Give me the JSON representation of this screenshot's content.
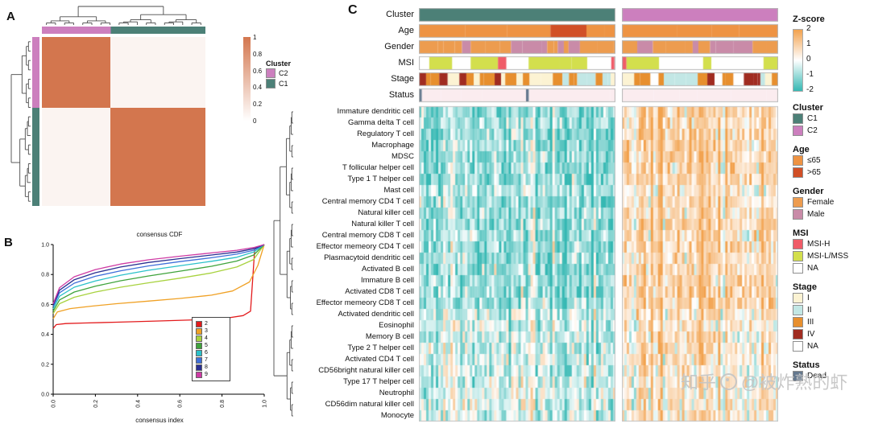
{
  "watermark": {
    "brand": "知乎",
    "handle": "@被炸熟的虾"
  },
  "chart_data": [
    {
      "label": "A",
      "type": "heatmap",
      "subtype": "consensus-matrix",
      "heat": {
        "block_color": "#D3764E",
        "off_color": "#FBF4F1",
        "c2_fraction": 0.42
      },
      "colorbar": {
        "ticks": [
          "1",
          "0.8",
          "0.6",
          "0.4",
          "0.2",
          "0"
        ],
        "high": "#D3764E",
        "low": "#FFFFFF"
      },
      "cluster_legend": {
        "title": "Cluster",
        "items": [
          {
            "label": "C2",
            "color": "#CC7FBE"
          },
          {
            "label": "C1",
            "color": "#4C8077"
          }
        ]
      }
    },
    {
      "label": "B",
      "type": "line",
      "title": "consensus CDF",
      "xlabel": "consensus index",
      "x_ticks": [
        "0.0",
        "0.2",
        "0.4",
        "0.6",
        "0.8",
        "1.0"
      ],
      "y_ticks": [
        "0.0",
        "0.2",
        "0.4",
        "0.6",
        "0.8",
        "1.0"
      ],
      "xlim": [
        0,
        1
      ],
      "ylim": [
        0,
        1
      ],
      "series": [
        {
          "name": "2",
          "color": "#E31A1C",
          "points": [
            [
              0,
              0.44
            ],
            [
              0.015,
              0.465
            ],
            [
              0.06,
              0.472
            ],
            [
              0.15,
              0.476
            ],
            [
              0.3,
              0.481
            ],
            [
              0.5,
              0.489
            ],
            [
              0.7,
              0.498
            ],
            [
              0.82,
              0.508
            ],
            [
              0.9,
              0.525
            ],
            [
              0.935,
              0.555
            ],
            [
              0.955,
              0.97
            ],
            [
              1,
              1
            ]
          ]
        },
        {
          "name": "3",
          "color": "#F0A125",
          "points": [
            [
              0,
              0.505
            ],
            [
              0.02,
              0.55
            ],
            [
              0.08,
              0.572
            ],
            [
              0.18,
              0.588
            ],
            [
              0.3,
              0.605
            ],
            [
              0.45,
              0.622
            ],
            [
              0.6,
              0.64
            ],
            [
              0.75,
              0.662
            ],
            [
              0.85,
              0.69
            ],
            [
              0.93,
              0.75
            ],
            [
              0.97,
              0.86
            ],
            [
              1,
              1
            ]
          ]
        },
        {
          "name": "4",
          "color": "#A8D23F",
          "points": [
            [
              0,
              0.54
            ],
            [
              0.03,
              0.605
            ],
            [
              0.1,
              0.648
            ],
            [
              0.2,
              0.683
            ],
            [
              0.32,
              0.715
            ],
            [
              0.45,
              0.744
            ],
            [
              0.6,
              0.775
            ],
            [
              0.75,
              0.81
            ],
            [
              0.87,
              0.85
            ],
            [
              0.95,
              0.9
            ],
            [
              1,
              1
            ]
          ]
        },
        {
          "name": "5",
          "color": "#3FA33C",
          "points": [
            [
              0,
              0.555
            ],
            [
              0.03,
              0.63
            ],
            [
              0.1,
              0.683
            ],
            [
              0.2,
              0.722
            ],
            [
              0.32,
              0.758
            ],
            [
              0.45,
              0.79
            ],
            [
              0.6,
              0.822
            ],
            [
              0.75,
              0.855
            ],
            [
              0.87,
              0.89
            ],
            [
              0.95,
              0.93
            ],
            [
              1,
              1
            ]
          ]
        },
        {
          "name": "6",
          "color": "#2BC1C9",
          "points": [
            [
              0,
              0.57
            ],
            [
              0.03,
              0.655
            ],
            [
              0.1,
              0.715
            ],
            [
              0.2,
              0.757
            ],
            [
              0.32,
              0.795
            ],
            [
              0.45,
              0.828
            ],
            [
              0.6,
              0.858
            ],
            [
              0.75,
              0.888
            ],
            [
              0.87,
              0.915
            ],
            [
              0.95,
              0.95
            ],
            [
              1,
              1
            ]
          ]
        },
        {
          "name": "7",
          "color": "#3E6FD9",
          "points": [
            [
              0,
              0.585
            ],
            [
              0.03,
              0.678
            ],
            [
              0.1,
              0.742
            ],
            [
              0.2,
              0.788
            ],
            [
              0.32,
              0.825
            ],
            [
              0.45,
              0.857
            ],
            [
              0.6,
              0.886
            ],
            [
              0.75,
              0.912
            ],
            [
              0.87,
              0.936
            ],
            [
              0.95,
              0.962
            ],
            [
              1,
              1
            ]
          ]
        },
        {
          "name": "8",
          "color": "#2A2F91",
          "points": [
            [
              0,
              0.595
            ],
            [
              0.03,
              0.695
            ],
            [
              0.1,
              0.765
            ],
            [
              0.2,
              0.812
            ],
            [
              0.32,
              0.85
            ],
            [
              0.45,
              0.88
            ],
            [
              0.6,
              0.906
            ],
            [
              0.75,
              0.93
            ],
            [
              0.87,
              0.95
            ],
            [
              0.95,
              0.972
            ],
            [
              1,
              1
            ]
          ]
        },
        {
          "name": "9",
          "color": "#CE3BA4",
          "points": [
            [
              0,
              0.605
            ],
            [
              0.03,
              0.712
            ],
            [
              0.1,
              0.785
            ],
            [
              0.2,
              0.833
            ],
            [
              0.32,
              0.87
            ],
            [
              0.45,
              0.898
            ],
            [
              0.6,
              0.922
            ],
            [
              0.75,
              0.944
            ],
            [
              0.87,
              0.962
            ],
            [
              0.95,
              0.98
            ],
            [
              1,
              1
            ]
          ]
        }
      ]
    },
    {
      "label": "C",
      "type": "heatmap",
      "subtype": "annotated-zscore-heatmap",
      "annotation_labels": [
        "Cluster",
        "Age",
        "Gender",
        "MSI",
        "Stage",
        "Status"
      ],
      "cluster_colors": {
        "c1": "#4C8077",
        "c2": "#CC7FBE"
      },
      "palette": {
        "high": "#F2A24E",
        "mid": "#FFFFFF",
        "low": "#35B8B3"
      },
      "annotations": [
        {
          "label": "Age",
          "cats": [
            {
              "label": "≤65",
              "color": "#EE9343",
              "p": 0.58,
              "run": [
                18,
                70
              ]
            },
            {
              "label": ">65",
              "color": "#D14F26",
              "p": 0.42,
              "run": [
                12,
                46
              ]
            }
          ]
        },
        {
          "label": "Gender",
          "cats": [
            {
              "label": "Female",
              "color": "#ED9C4F",
              "p": 0.52,
              "run": [
                5,
                26
              ]
            },
            {
              "label": "Male",
              "color": "#C98BA8",
              "p": 0.48,
              "run": [
                5,
                26
              ]
            }
          ]
        },
        {
          "label": "MSI",
          "cats": [
            {
              "label": "MSI-H",
              "color": "#F05C68",
              "p": 0.12,
              "run": [
                3,
                12
              ]
            },
            {
              "label": "MSI-L/MSS",
              "color": "#D3DF4D",
              "p": 0.5,
              "run": [
                8,
                42
              ]
            },
            {
              "label": "NA",
              "color": "#FFFFFF",
              "p": 0.38,
              "run": [
                8,
                42
              ]
            }
          ]
        },
        {
          "label": "Stage",
          "cats": [
            {
              "label": "I",
              "color": "#FCF3D3",
              "p": 0.22,
              "run": [
                3,
                16
              ]
            },
            {
              "label": "II",
              "color": "#C2E7E5",
              "p": 0.26,
              "run": [
                3,
                16
              ]
            },
            {
              "label": "III",
              "color": "#E78F2E",
              "p": 0.2,
              "run": [
                3,
                14
              ]
            },
            {
              "label": "IV",
              "color": "#A02C21",
              "p": 0.17,
              "run": [
                3,
                12
              ]
            },
            {
              "label": "NA",
              "color": "#FFFFFF",
              "p": 0.15,
              "run": [
                3,
                12
              ]
            }
          ]
        },
        {
          "label": "Status",
          "cats": [
            {
              "color": "#FBECEF",
              "p": 0.84,
              "run": [
                14,
                55
              ]
            },
            {
              "label": "Dead",
              "color": "#64788E",
              "p": 0.16,
              "run": [
                2,
                4
              ]
            }
          ]
        }
      ],
      "rows": [
        {
          "label": "Immature dendritic cell",
          "c1_mean": -0.9,
          "c2_mean": 0.85
        },
        {
          "label": "Gamma delta T cell",
          "c1_mean": -0.85,
          "c2_mean": 0.8
        },
        {
          "label": "Regulatory T cell",
          "c1_mean": -0.95,
          "c2_mean": 0.9
        },
        {
          "label": "Macrophage",
          "c1_mean": -0.9,
          "c2_mean": 0.9
        },
        {
          "label": "MDSC",
          "c1_mean": -0.95,
          "c2_mean": 0.95
        },
        {
          "label": "T follicular helper cell",
          "c1_mean": -0.9,
          "c2_mean": 0.85
        },
        {
          "label": "Type 1 T helper cell",
          "c1_mean": -0.95,
          "c2_mean": 0.9
        },
        {
          "label": "Mast cell",
          "c1_mean": -0.7,
          "c2_mean": 0.6
        },
        {
          "label": "Central memory CD4 T cell",
          "c1_mean": -0.8,
          "c2_mean": 0.75
        },
        {
          "label": "Natural killer cell",
          "c1_mean": -0.85,
          "c2_mean": 0.8
        },
        {
          "label": "Natural killer T cell",
          "c1_mean": -0.9,
          "c2_mean": 0.85
        },
        {
          "label": "Central memory CD8 T cell",
          "c1_mean": -0.8,
          "c2_mean": 0.8
        },
        {
          "label": "Effector memeory CD4 T cell",
          "c1_mean": -0.85,
          "c2_mean": 0.85
        },
        {
          "label": "Plasmacytoid dendritic cell",
          "c1_mean": -0.8,
          "c2_mean": 0.7
        },
        {
          "label": "Activated B cell",
          "c1_mean": -0.9,
          "c2_mean": 0.85
        },
        {
          "label": "Immature B cell",
          "c1_mean": -0.85,
          "c2_mean": 0.8
        },
        {
          "label": "Activated CD8 T cell",
          "c1_mean": -0.85,
          "c2_mean": 0.9
        },
        {
          "label": "Effector memeory CD8 T cell",
          "c1_mean": -0.8,
          "c2_mean": 0.85
        },
        {
          "label": "Activated dendritic cell",
          "c1_mean": -0.5,
          "c2_mean": 0.5
        },
        {
          "label": "Eosinophil",
          "c1_mean": -0.3,
          "c2_mean": 0.4
        },
        {
          "label": "Memory B cell",
          "c1_mean": -0.4,
          "c2_mean": 0.5
        },
        {
          "label": "Type 2 T helper cell",
          "c1_mean": -0.45,
          "c2_mean": 0.55
        },
        {
          "label": "Activated CD4 T cell",
          "c1_mean": -0.3,
          "c2_mean": 0.5
        },
        {
          "label": "CD56bright natural killer cell",
          "c1_mean": -0.4,
          "c2_mean": 0.35
        },
        {
          "label": "Type 17 T helper cell",
          "c1_mean": -0.35,
          "c2_mean": 0.4
        },
        {
          "label": "Neutrophil",
          "c1_mean": -0.3,
          "c2_mean": 0.35
        },
        {
          "label": "CD56dim natural killer cell",
          "c1_mean": -0.25,
          "c2_mean": 0.35
        },
        {
          "label": "Monocyte",
          "c1_mean": -0.35,
          "c2_mean": 0.5
        }
      ],
      "legends": [
        {
          "title": "Z-score",
          "type": "gradient",
          "ticks": [
            "2",
            "1",
            "0",
            "-1",
            "-2"
          ],
          "colors": [
            "#F2A24E",
            "#FFFFFF",
            "#35B8B3"
          ]
        },
        {
          "title": "Cluster",
          "type": "swatches",
          "items": [
            {
              "label": "C1",
              "color": "#4C8077"
            },
            {
              "label": "C2",
              "color": "#CC7FBE"
            }
          ]
        },
        {
          "title": "Age",
          "type": "swatches",
          "items": [
            {
              "label": "≤65",
              "color": "#EE9343"
            },
            {
              "label": ">65",
              "color": "#D14F26"
            }
          ]
        },
        {
          "title": "Gender",
          "type": "swatches",
          "items": [
            {
              "label": "Female",
              "color": "#ED9C4F"
            },
            {
              "label": "Male",
              "color": "#C98BA8"
            }
          ]
        },
        {
          "title": "MSI",
          "type": "swatches",
          "items": [
            {
              "label": "MSI-H",
              "color": "#F05C68"
            },
            {
              "label": "MSI-L/MSS",
              "color": "#D3DF4D"
            },
            {
              "label": "NA",
              "color": "#FFFFFF"
            }
          ]
        },
        {
          "title": "Stage",
          "type": "swatches",
          "items": [
            {
              "label": "I",
              "color": "#FCF3D3"
            },
            {
              "label": "II",
              "color": "#C2E7E5"
            },
            {
              "label": "III",
              "color": "#E78F2E"
            },
            {
              "label": "IV",
              "color": "#A02C21"
            },
            {
              "label": "NA",
              "color": "#FFFFFF"
            }
          ]
        },
        {
          "title": "Status",
          "type": "swatches",
          "items": [
            {
              "label": "Dead",
              "color": "#64788E"
            }
          ]
        }
      ]
    }
  ]
}
